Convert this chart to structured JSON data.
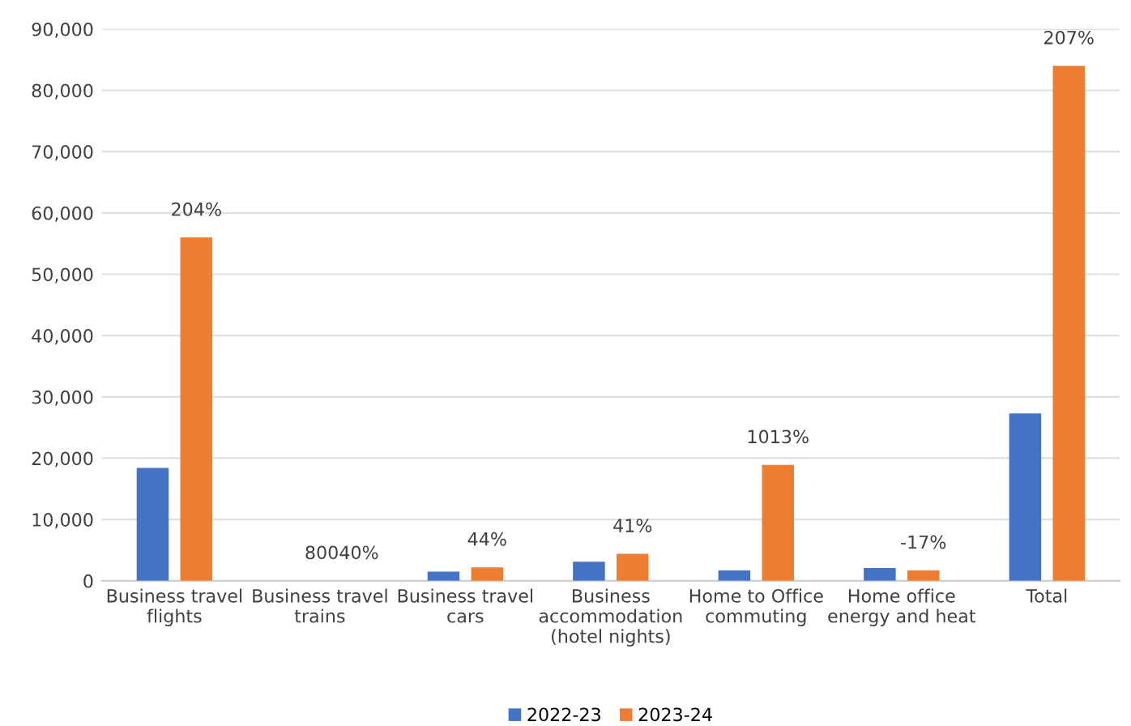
{
  "chart_data": {
    "type": "bar",
    "categories": [
      "Business travel\nflights",
      "Business travel\ntrains",
      "Business travel\ncars",
      "Business\naccommodation\n(hotel nights)",
      "Home to Office\ncommuting",
      "Home office\nenergy and heat",
      "Total"
    ],
    "series": [
      {
        "name": "2022-23",
        "color": "#4472c4",
        "values": [
          18400,
          0,
          1500,
          3100,
          1700,
          2100,
          27300
        ]
      },
      {
        "name": "2023-24",
        "color": "#ed7d31",
        "values": [
          56000,
          0,
          2200,
          4400,
          18900,
          1700,
          84000
        ]
      }
    ],
    "annotations": [
      {
        "text": "204%",
        "x": "Business travel\nflights",
        "y": 56000
      },
      {
        "text": "80040%",
        "x": "Business travel\ntrains",
        "y": 0
      },
      {
        "text": "44%",
        "x": "Business travel\ncars",
        "y": 2200
      },
      {
        "text": "41%",
        "x": "Business\naccommodation\n(hotel nights)",
        "y": 4400
      },
      {
        "text": "1013%",
        "x": "Home to Office\ncommuting",
        "y": 18900
      },
      {
        "text": "-17%",
        "x": "Home office\nenergy and heat",
        "y": 1700
      },
      {
        "text": "207%",
        "x": "Total",
        "y": 84000
      }
    ],
    "ylim": [
      0,
      90000
    ],
    "yticks": [
      {
        "value": 0,
        "label": "0"
      },
      {
        "value": 10000,
        "label": "10,000"
      },
      {
        "value": 20000,
        "label": "20,000"
      },
      {
        "value": 30000,
        "label": "30,000"
      },
      {
        "value": 40000,
        "label": "40,000"
      },
      {
        "value": 50000,
        "label": "50,000"
      },
      {
        "value": 60000,
        "label": "60,000"
      },
      {
        "value": 70000,
        "label": "70,000"
      },
      {
        "value": 80000,
        "label": "80,000"
      },
      {
        "value": 90000,
        "label": "90,000"
      }
    ],
    "grid": "y",
    "legend": "bottom"
  }
}
